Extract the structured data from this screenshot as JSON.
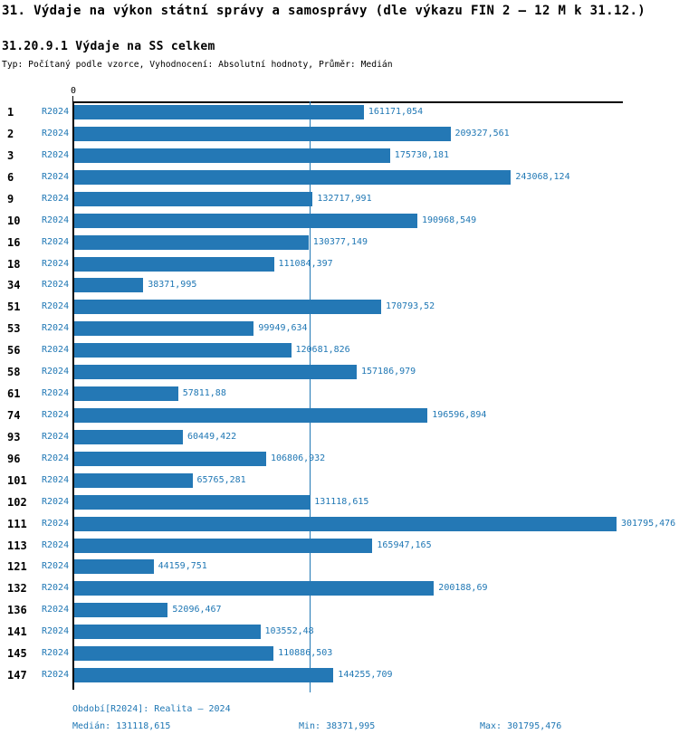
{
  "header": {
    "title": "31. Výdaje na výkon státní správy a samosprávy (dle výkazu FIN 2 – 12 M k 31.12.)",
    "subtitle": "31.20.9.1 Výdaje na SS celkem",
    "meta": "Typ: Počítaný podle vzorce, Vyhodnocení: Absolutní hodnoty, Průměr: Medián"
  },
  "chart_data": {
    "type": "bar",
    "orientation": "horizontal",
    "title": "31.20.9.1 Výdaje na SS celkem",
    "series_name": "R2024",
    "categories": [
      "1",
      "2",
      "3",
      "6",
      "9",
      "10",
      "16",
      "18",
      "34",
      "51",
      "53",
      "56",
      "58",
      "61",
      "74",
      "93",
      "96",
      "101",
      "102",
      "111",
      "113",
      "121",
      "132",
      "136",
      "141",
      "145",
      "147"
    ],
    "values": [
      161171.054,
      209327.561,
      175730.181,
      243068.124,
      132717.991,
      190968.549,
      130377.149,
      111084.397,
      38371.995,
      170793.52,
      99949.634,
      120681.826,
      157186.979,
      57811.88,
      196596.894,
      60449.422,
      106806.932,
      65765.281,
      131118.615,
      301795.476,
      165947.165,
      44159.751,
      200188.69,
      52096.467,
      103552.48,
      110886.503,
      144255.709
    ],
    "value_labels": [
      "161171,054",
      "209327,561",
      "175730,181",
      "243068,124",
      "132717,991",
      "190968,549",
      "130377,149",
      "111084,397",
      "38371,995",
      "170793,52",
      "99949,634",
      "120681,826",
      "157186,979",
      "57811,88",
      "196596,894",
      "60449,422",
      "106806,932",
      "65765,281",
      "131118,615",
      "301795,476",
      "165947,165",
      "44159,751",
      "200188,69",
      "52096,467",
      "103552,48",
      "110886,503",
      "144255,709"
    ],
    "xlim": [
      0,
      301795.476
    ],
    "axis": {
      "zero_label": "0"
    },
    "median": 131118.615,
    "min": 38371.995,
    "max": 301795.476,
    "legend_position": "none",
    "grid": false,
    "colors": {
      "bar": "#2478b5",
      "value_text": "#1f77b4",
      "median_line": "#1f77b4",
      "axis": "#000000"
    }
  },
  "footer": {
    "period": "Období[R2024]: Realita – 2024",
    "median": "Medián: 131118,615",
    "min": "Min: 38371,995",
    "max": "Max: 301795,476"
  }
}
